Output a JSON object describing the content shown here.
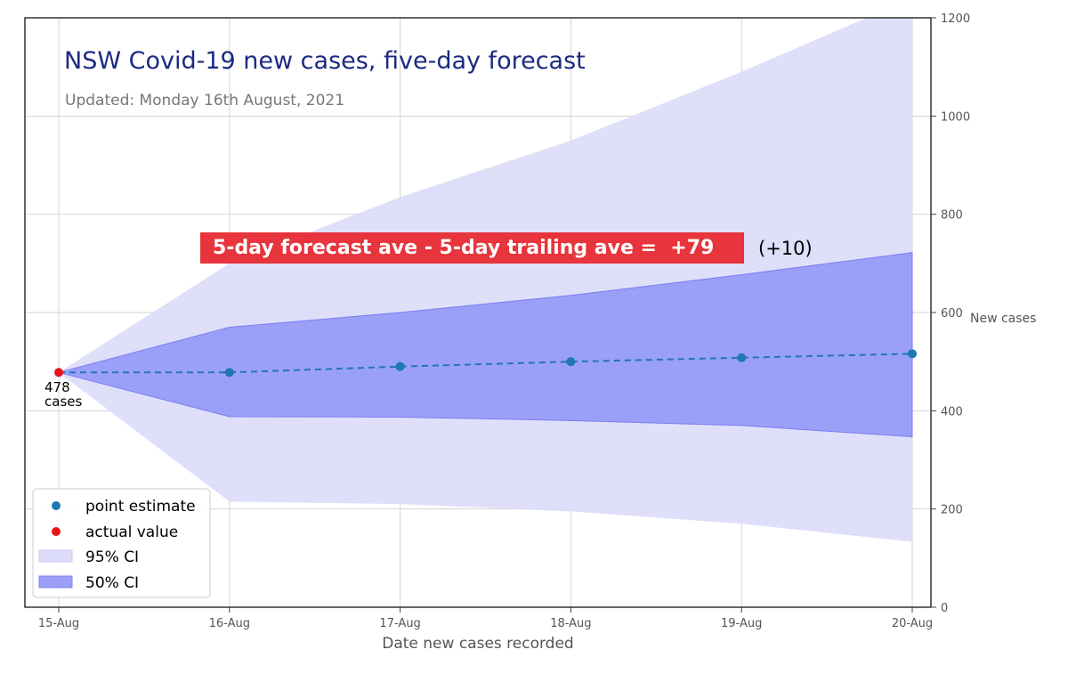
{
  "chart_data": {
    "type": "line",
    "title": "NSW Covid-19 new cases, five-day forecast",
    "subtitle": "Updated: Monday 16th August, 2021",
    "xlabel": "Date new cases recorded",
    "ylabel": "New cases",
    "categories": [
      "15-Aug",
      "16-Aug",
      "17-Aug",
      "18-Aug",
      "19-Aug",
      "20-Aug"
    ],
    "ylim": [
      0,
      1200
    ],
    "yticks": [
      0,
      200,
      400,
      600,
      800,
      1000,
      1200
    ],
    "y_axis_side": "right",
    "grid": true,
    "legend_position": "bottom-left",
    "series": [
      {
        "name": "point estimate",
        "kind": "point",
        "color": "#1f77b4",
        "values": [
          478,
          478,
          490,
          500,
          508,
          516
        ]
      },
      {
        "name": "actual value",
        "kind": "point",
        "color": "#e8141c",
        "values": [
          478,
          null,
          null,
          null,
          null,
          null
        ]
      },
      {
        "name": "95% CI",
        "kind": "band",
        "color": "#c8c8f8",
        "lower": [
          478,
          215,
          210,
          195,
          170,
          133
        ],
        "upper": [
          478,
          700,
          835,
          950,
          1090,
          1240
        ]
      },
      {
        "name": "50% CI",
        "kind": "band",
        "color": "#8a8ef5",
        "lower": [
          478,
          388,
          387,
          380,
          370,
          347
        ],
        "upper": [
          478,
          570,
          600,
          635,
          677,
          722
        ]
      }
    ],
    "annotations": {
      "start_value": "478",
      "start_unit": "cases",
      "banner": "5-day forecast ave - 5-day trailing ave =  +79",
      "banner_color": "#e8343c",
      "change": "(+10)"
    }
  }
}
